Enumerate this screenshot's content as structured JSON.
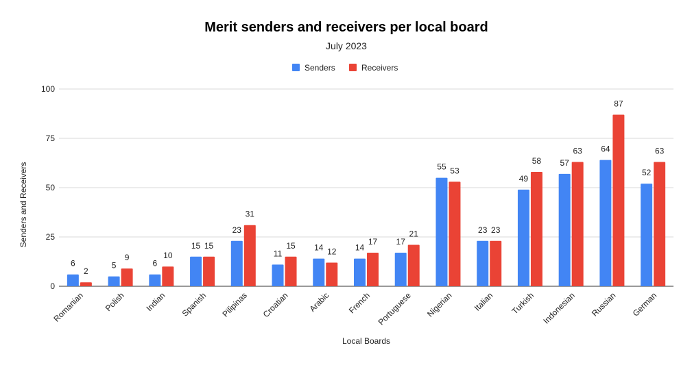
{
  "chart_data": {
    "type": "bar",
    "title": "Merit senders and receivers per local board",
    "subtitle": "July 2023",
    "xlabel": "Local Boards",
    "ylabel": "Senders and Receivers",
    "ylim": [
      0,
      100
    ],
    "yticks": [
      0,
      25,
      50,
      75,
      100
    ],
    "grid": true,
    "legend_position": "top",
    "categories": [
      "Romanian",
      "Polish",
      "Indian",
      "Spanish",
      "Pilipinas",
      "Croatian",
      "Arabic",
      "French",
      "Portuguese",
      "Nigerian",
      "Italian",
      "Turkish",
      "Indonesian",
      "Russian",
      "German"
    ],
    "series": [
      {
        "name": "Senders",
        "color": "#4285f4",
        "values": [
          6,
          5,
          6,
          15,
          23,
          11,
          14,
          14,
          17,
          55,
          23,
          49,
          57,
          64,
          52
        ]
      },
      {
        "name": "Receivers",
        "color": "#ea4335",
        "values": [
          2,
          9,
          10,
          15,
          31,
          15,
          12,
          17,
          21,
          53,
          23,
          58,
          63,
          87,
          63
        ]
      }
    ]
  }
}
